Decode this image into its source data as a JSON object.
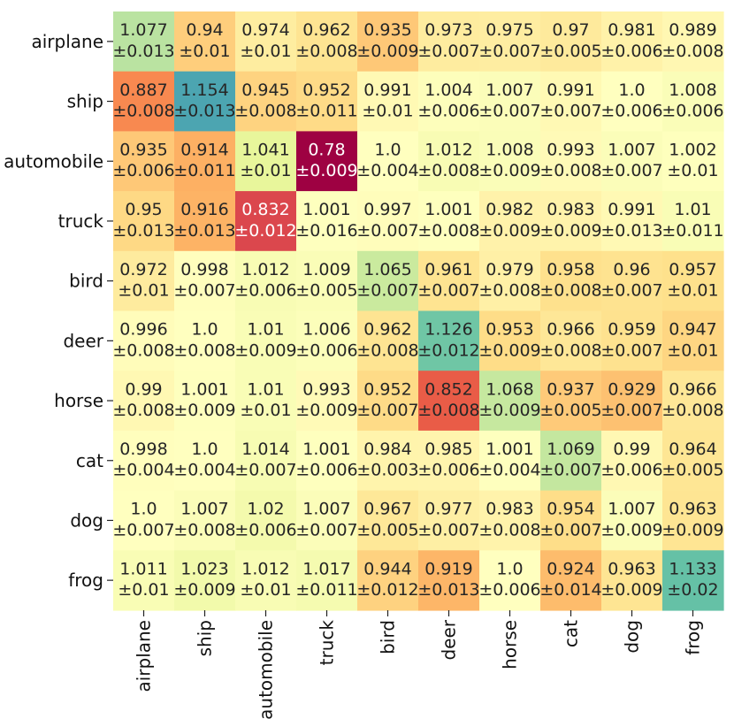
{
  "chart_data": {
    "type": "heatmap",
    "title": "",
    "xlabel": "",
    "ylabel": "",
    "row_labels": [
      "airplane",
      "ship",
      "automobile",
      "truck",
      "bird",
      "deer",
      "horse",
      "cat",
      "dog",
      "frog"
    ],
    "col_labels": [
      "airplane",
      "ship",
      "automobile",
      "truck",
      "bird",
      "deer",
      "horse",
      "cat",
      "dog",
      "frog"
    ],
    "values": [
      [
        "1.077",
        "0.94",
        "0.974",
        "0.962",
        "0.935",
        "0.973",
        "0.975",
        "0.97",
        "0.981",
        "0.989"
      ],
      [
        "0.887",
        "1.154",
        "0.945",
        "0.952",
        "0.991",
        "1.004",
        "1.007",
        "0.991",
        "1.0",
        "1.008"
      ],
      [
        "0.935",
        "0.914",
        "1.041",
        "0.78",
        "1.0",
        "1.012",
        "1.008",
        "0.993",
        "1.007",
        "1.002"
      ],
      [
        "0.95",
        "0.916",
        "0.832",
        "1.001",
        "0.997",
        "1.001",
        "0.982",
        "0.983",
        "0.991",
        "1.01"
      ],
      [
        "0.972",
        "0.998",
        "1.012",
        "1.009",
        "1.065",
        "0.961",
        "0.979",
        "0.958",
        "0.96",
        "0.957"
      ],
      [
        "0.996",
        "1.0",
        "1.01",
        "1.006",
        "0.962",
        "1.126",
        "0.953",
        "0.966",
        "0.959",
        "0.947"
      ],
      [
        "0.99",
        "1.001",
        "1.01",
        "0.993",
        "0.952",
        "0.852",
        "1.068",
        "0.937",
        "0.929",
        "0.966"
      ],
      [
        "0.998",
        "1.0",
        "1.014",
        "1.001",
        "0.984",
        "0.985",
        "1.001",
        "1.069",
        "0.99",
        "0.964"
      ],
      [
        "1.0",
        "1.007",
        "1.02",
        "1.007",
        "0.967",
        "0.977",
        "0.983",
        "0.954",
        "1.007",
        "0.963"
      ],
      [
        "1.011",
        "1.023",
        "1.012",
        "1.017",
        "0.944",
        "0.919",
        "1.0",
        "0.924",
        "0.963",
        "1.133"
      ]
    ],
    "errors": [
      [
        "0.013",
        "0.01",
        "0.01",
        "0.008",
        "0.009",
        "0.007",
        "0.007",
        "0.005",
        "0.006",
        "0.008"
      ],
      [
        "0.008",
        "0.013",
        "0.008",
        "0.011",
        "0.01",
        "0.006",
        "0.007",
        "0.007",
        "0.006",
        "0.006"
      ],
      [
        "0.006",
        "0.011",
        "0.01",
        "0.009",
        "0.004",
        "0.008",
        "0.009",
        "0.008",
        "0.007",
        "0.01"
      ],
      [
        "0.013",
        "0.013",
        "0.012",
        "0.016",
        "0.007",
        "0.008",
        "0.009",
        "0.009",
        "0.013",
        "0.011"
      ],
      [
        "0.01",
        "0.007",
        "0.006",
        "0.005",
        "0.007",
        "0.007",
        "0.008",
        "0.008",
        "0.007",
        "0.01"
      ],
      [
        "0.008",
        "0.008",
        "0.009",
        "0.006",
        "0.008",
        "0.012",
        "0.009",
        "0.008",
        "0.007",
        "0.01"
      ],
      [
        "0.008",
        "0.009",
        "0.01",
        "0.009",
        "0.007",
        "0.008",
        "0.009",
        "0.005",
        "0.007",
        "0.008"
      ],
      [
        "0.004",
        "0.004",
        "0.007",
        "0.006",
        "0.003",
        "0.006",
        "0.004",
        "0.007",
        "0.006",
        "0.005"
      ],
      [
        "0.007",
        "0.008",
        "0.006",
        "0.007",
        "0.005",
        "0.007",
        "0.008",
        "0.007",
        "0.009",
        "0.009"
      ],
      [
        "0.01",
        "0.009",
        "0.01",
        "0.011",
        "0.012",
        "0.013",
        "0.006",
        "0.014",
        "0.009",
        "0.02"
      ]
    ],
    "error_prefix": "±",
    "colormap": "Spectral",
    "vmin": 0.78,
    "vmax": 1.154,
    "center": 1.0,
    "colorbar": false
  },
  "colors": {
    "colormap_stops": [
      "#9e0142",
      "#d53e4f",
      "#f46d43",
      "#fdae61",
      "#fee08b",
      "#ffffbf",
      "#e6f598",
      "#abdda4",
      "#66c2a5",
      "#3288bd",
      "#5e4fa2"
    ],
    "text_dark": "#262626",
    "text_light": "#ffffff"
  }
}
